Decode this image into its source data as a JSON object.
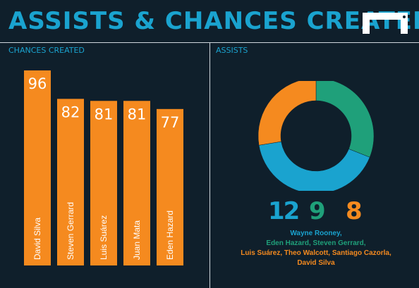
{
  "title": "ASSISTS & CHANCES CREATED",
  "sections": {
    "chances": "CHANCES CREATED",
    "assists": "ASSISTS"
  },
  "colors": {
    "background": "#0f1f2b",
    "title": "#1aa3cf",
    "bar": "#f58a1f",
    "blue": "#1aa3cf",
    "green": "#1fa07a",
    "orange": "#f58a1f"
  },
  "icons": {
    "logo": "goal-logo-icon"
  },
  "chart_data": [
    {
      "type": "bar",
      "title": "CHANCES CREATED",
      "categories": [
        "David Silva",
        "Steven Gerrard",
        "Luis Suárez",
        "Juan Mata",
        "Eden Hazard"
      ],
      "values": [
        96,
        82,
        81,
        81,
        77
      ],
      "ylim": [
        0,
        96
      ]
    },
    {
      "type": "pie",
      "title": "ASSISTS",
      "values": [
        9,
        12,
        8
      ],
      "colors": [
        "#1fa07a",
        "#1aa3cf",
        "#f58a1f"
      ]
    }
  ],
  "assists": {
    "counts": [
      {
        "value": "12",
        "color": "#1aa3cf"
      },
      {
        "value": "9",
        "color": "#1fa07a"
      },
      {
        "value": "8",
        "color": "#f58a1f"
      }
    ],
    "names": [
      {
        "text": "Wayne Rooney,",
        "color": "#1aa3cf"
      },
      {
        "text": "Eden Hazard, Steven Gerrard,",
        "color": "#1fa07a"
      },
      {
        "text": "Luis Suárez, Theo Walcott, Santiago Cazorla,",
        "color": "#f58a1f"
      },
      {
        "text": "David Silva",
        "color": "#f58a1f"
      }
    ]
  }
}
